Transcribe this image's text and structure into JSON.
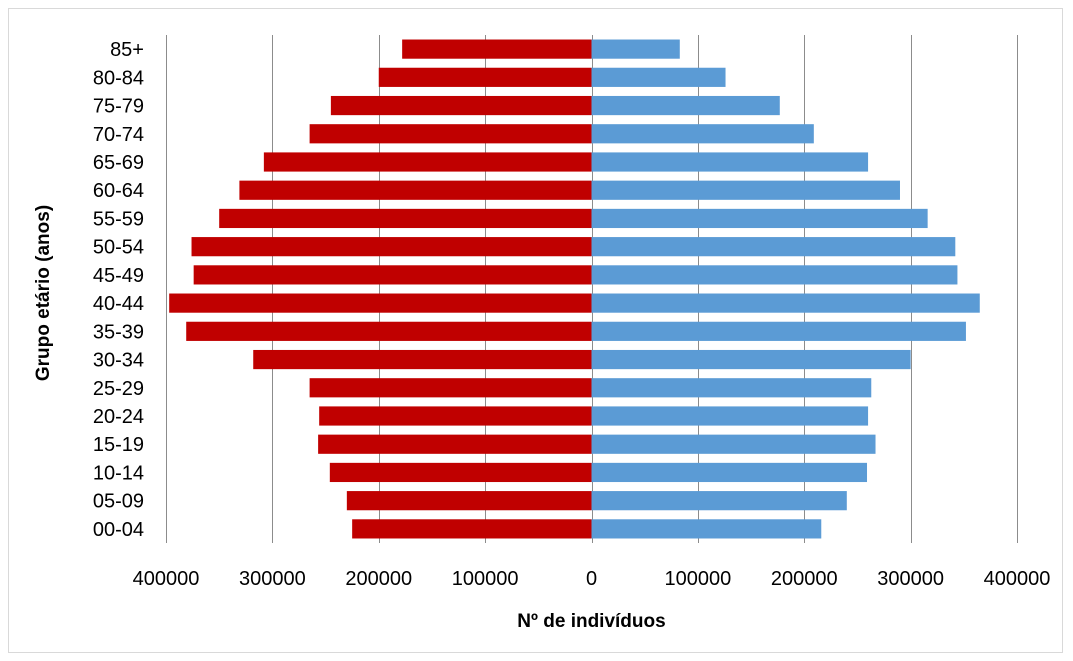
{
  "chart_data": {
    "type": "bar",
    "orientation": "horizontal",
    "layout": "population-pyramid",
    "categories": [
      "00-04",
      "05-09",
      "10-14",
      "15-19",
      "20-24",
      "25-29",
      "30-34",
      "35-39",
      "40-44",
      "45-49",
      "50-54",
      "55-59",
      "60-64",
      "65-69",
      "70-74",
      "75-79",
      "80-84",
      "85+"
    ],
    "series": [
      {
        "color": "#C00000",
        "side": "left",
        "values": [
          225000,
          230000,
          246000,
          257000,
          256000,
          265000,
          318000,
          381000,
          397000,
          374000,
          376000,
          350000,
          331000,
          308000,
          265000,
          245000,
          200000,
          178000
        ]
      },
      {
        "color": "#5B9BD5",
        "side": "right",
        "values": [
          216000,
          240000,
          259000,
          267000,
          260000,
          263000,
          300000,
          352000,
          365000,
          344000,
          342000,
          316000,
          290000,
          260000,
          209000,
          177000,
          126000,
          83000
        ]
      }
    ],
    "xlabel": "Nº de indivíduos",
    "ylabel": "Grupo etário (anos)",
    "xlim": [
      -400000,
      400000
    ],
    "x_ticks": [
      -400000,
      -300000,
      -200000,
      -100000,
      0,
      100000,
      200000,
      300000,
      400000
    ],
    "x_tick_labels": [
      "400000",
      "300000",
      "200000",
      "100000",
      "0",
      "100000",
      "200000",
      "300000",
      "400000"
    ],
    "grid": "vertical",
    "legend": "none"
  }
}
